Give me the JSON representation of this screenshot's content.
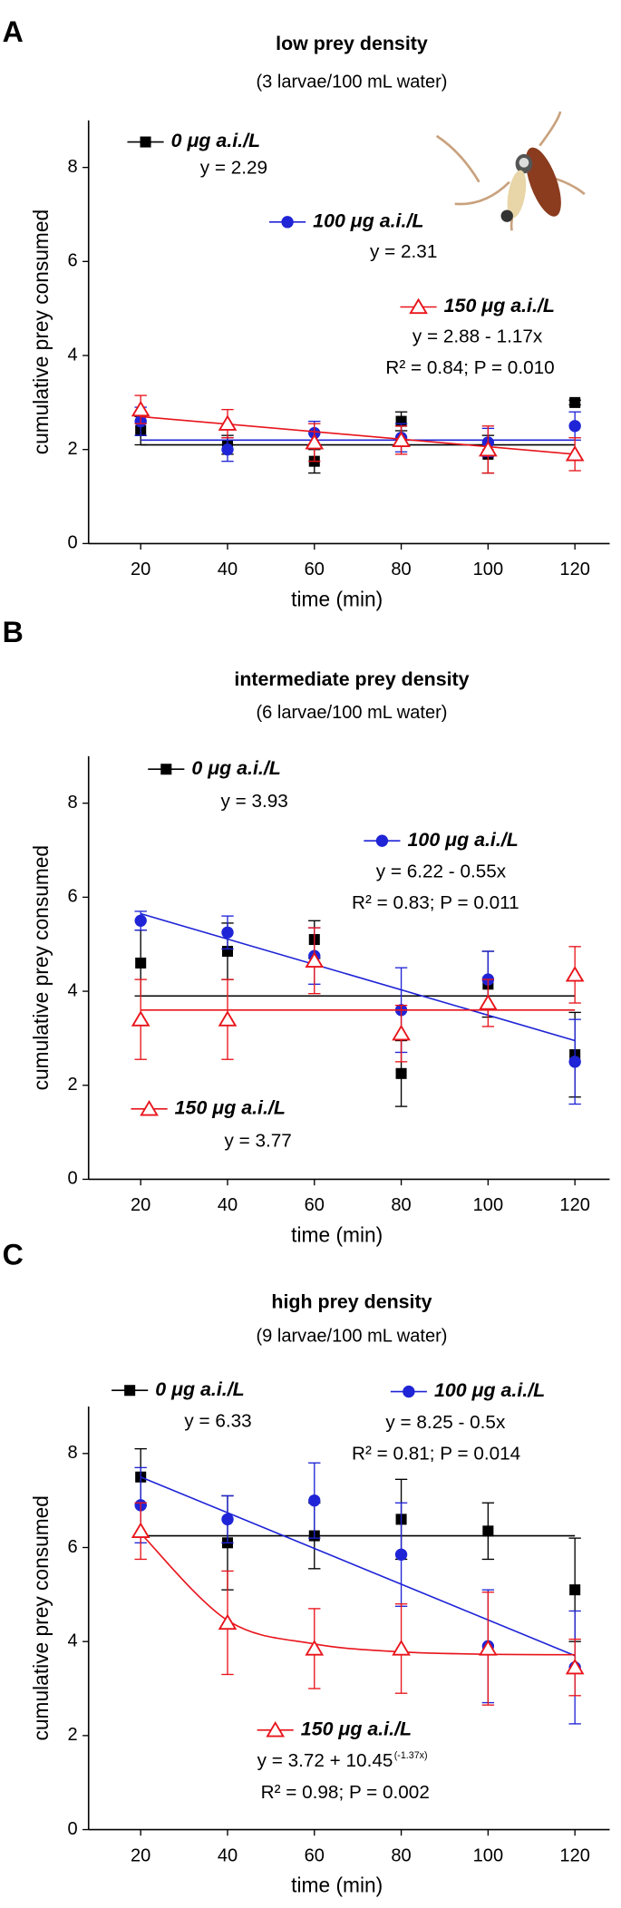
{
  "chart_data": [
    {
      "type": "scatter",
      "panel": "A",
      "title": "low prey density",
      "subtitle": "(3 larvae/100 mL water)",
      "x_label": "time (min)",
      "y_label": "cumulative prey consumed",
      "x": [
        20,
        40,
        60,
        80,
        100,
        120
      ],
      "xlim": [
        8,
        128
      ],
      "xticks": [
        20,
        40,
        60,
        80,
        100,
        120
      ],
      "ylim": [
        0,
        9
      ],
      "yticks": [
        0,
        2,
        4,
        6,
        8
      ],
      "series": [
        {
          "name": "0 μg a.i./L",
          "color": "#000000",
          "marker": "square",
          "values": [
            2.4,
            2.1,
            1.75,
            2.6,
            1.9,
            3.0
          ],
          "errors": [
            0.3,
            0.2,
            0.25,
            0.2,
            0.4,
            0.05
          ],
          "fit": [
            2.1,
            2.1
          ],
          "equation": "y = 2.29"
        },
        {
          "name": "100 μg a.i./L",
          "color": "#1f24d6",
          "marker": "circle",
          "values": [
            2.6,
            2.0,
            2.35,
            2.25,
            2.15,
            2.5
          ],
          "errors": [
            0.3,
            0.25,
            0.25,
            0.3,
            0.3,
            0.3
          ],
          "fit": [
            2.2,
            2.2
          ],
          "equation": "y = 2.31"
        },
        {
          "name": "150 μg a.i./L",
          "color": "#e8141b",
          "marker": "triangle",
          "values": [
            2.85,
            2.55,
            2.15,
            2.2,
            2.0,
            1.9
          ],
          "errors": [
            0.3,
            0.3,
            0.4,
            0.3,
            0.5,
            0.35
          ],
          "fit": [
            2.7,
            1.9
          ],
          "equation": "y = 2.88 - 1.17x",
          "stats": "R² = 0.84; P = 0.010"
        }
      ]
    },
    {
      "type": "scatter",
      "panel": "B",
      "title": "intermediate prey density",
      "subtitle": "(6 larvae/100 mL water)",
      "x_label": "time (min)",
      "y_label": "cumulative prey consumed",
      "x": [
        20,
        40,
        60,
        80,
        100,
        120
      ],
      "xlim": [
        8,
        128
      ],
      "xticks": [
        20,
        40,
        60,
        80,
        100,
        120
      ],
      "ylim": [
        0,
        9
      ],
      "yticks": [
        0,
        2,
        4,
        6,
        8
      ],
      "series": [
        {
          "name": "0 μg a.i./L",
          "color": "#000000",
          "marker": "square",
          "values": [
            4.6,
            4.85,
            5.1,
            2.25,
            4.15,
            2.65
          ],
          "errors": [
            0.7,
            0.6,
            0.4,
            0.7,
            0.7,
            0.9
          ],
          "fit": [
            3.9,
            3.9
          ],
          "equation": "y = 3.93"
        },
        {
          "name": "100 μg a.i./L",
          "color": "#1f24d6",
          "marker": "circle",
          "values": [
            5.5,
            5.25,
            4.75,
            3.6,
            4.25,
            2.5
          ],
          "errors": [
            0.2,
            0.35,
            0.6,
            0.9,
            0.6,
            0.9
          ],
          "fit": [
            5.65,
            2.95
          ],
          "equation": "y = 6.22 - 0.55x",
          "stats": "R² = 0.83; P = 0.011"
        },
        {
          "name": "150 μg a.i./L",
          "color": "#e8141b",
          "marker": "triangle",
          "values": [
            3.4,
            3.4,
            4.65,
            3.1,
            3.75,
            4.35
          ],
          "errors": [
            0.85,
            0.85,
            0.7,
            0.6,
            0.5,
            0.6
          ],
          "fit": [
            3.6,
            3.6
          ],
          "equation": "y = 3.77"
        }
      ]
    },
    {
      "type": "scatter",
      "panel": "C",
      "title": "high prey density",
      "subtitle": "(9 larvae/100 mL water)",
      "x_label": "time (min)",
      "y_label": "cumulative prey consumed",
      "x": [
        20,
        40,
        60,
        80,
        100,
        120
      ],
      "xlim": [
        8,
        128
      ],
      "xticks": [
        20,
        40,
        60,
        80,
        100,
        120
      ],
      "ylim": [
        0,
        9
      ],
      "yticks": [
        0,
        2,
        4,
        6,
        8
      ],
      "series": [
        {
          "name": "0 μg a.i./L",
          "color": "#000000",
          "marker": "square",
          "values": [
            7.5,
            6.1,
            6.25,
            6.6,
            6.35,
            5.1
          ],
          "errors": [
            0.6,
            1.0,
            0.7,
            0.85,
            0.6,
            1.1
          ],
          "fit": [
            6.25,
            6.25
          ],
          "equation": "y = 6.33"
        },
        {
          "name": "100 μg a.i./L",
          "color": "#1f24d6",
          "marker": "circle",
          "values": [
            6.9,
            6.6,
            7.0,
            5.85,
            3.9,
            3.45
          ],
          "errors": [
            0.8,
            0.5,
            0.8,
            1.1,
            1.2,
            1.2
          ],
          "fit": [
            7.5,
            3.7
          ],
          "equation": "y = 8.25 - 0.5x",
          "stats": "R² = 0.81; P = 0.014"
        },
        {
          "name": "150 μg a.i./L",
          "color": "#e8141b",
          "marker": "triangle",
          "values": [
            6.35,
            4.4,
            3.85,
            3.85,
            3.85,
            3.45
          ],
          "errors": [
            0.6,
            1.1,
            0.85,
            0.95,
            1.2,
            0.6
          ],
          "fit": [
            6.3,
            4.45,
            3.95,
            3.78,
            3.73,
            3.72
          ],
          "equation": "y = 3.72 + 10.45",
          "equation_sup": "(-1.37x)",
          "stats": "R² = 0.98; P = 0.002"
        }
      ]
    }
  ]
}
